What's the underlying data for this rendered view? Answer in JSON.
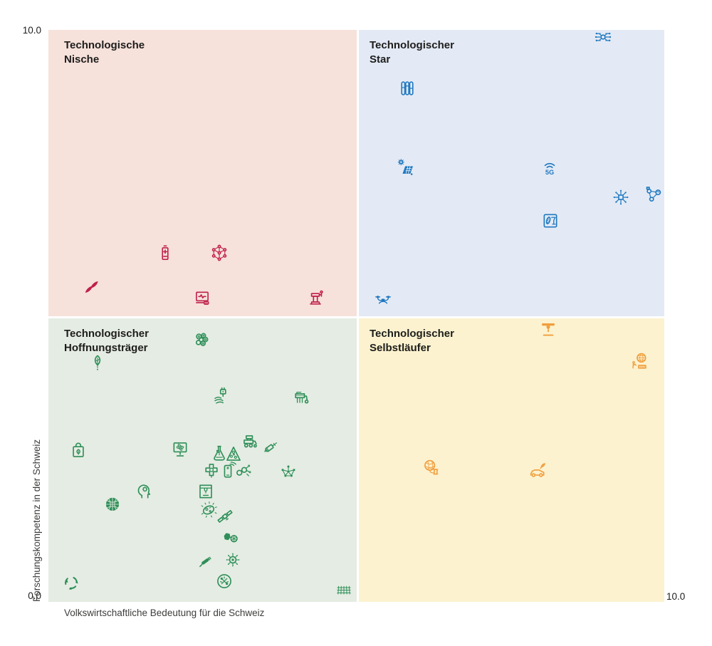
{
  "chart_data": {
    "type": "scatter",
    "title": "",
    "xlabel": "Volkswirtschaftliche Bedeutung für die Schweiz",
    "ylabel": "Forschungskompetenz in der Schweiz",
    "xlim": [
      0,
      10
    ],
    "ylim": [
      0,
      10
    ],
    "grid": false,
    "legend": "none",
    "x_tick_labels": {
      "min": "0.0",
      "max": "10.0"
    },
    "y_tick_labels": {
      "min": "0.0",
      "max": "10.0"
    },
    "quadrants": [
      {
        "id": "nische",
        "title_line1": "Technologische",
        "title_line2": "Nische",
        "bg": "#f6e1db",
        "icon_color": "#c0204a"
      },
      {
        "id": "star",
        "title_line1": "Technologischer",
        "title_line2": "Star",
        "bg": "#e3eaf5",
        "icon_color": "#2078c0"
      },
      {
        "id": "hoffnungstraeger",
        "title_line1": "Technologischer",
        "title_line2": "Hoffnungsträger",
        "bg": "#e5ece3",
        "icon_color": "#2e8f58"
      },
      {
        "id": "selbstlaeufer",
        "title_line1": "Technologischer",
        "title_line2": "Selbstläufer",
        "bg": "#fcf2cf",
        "icon_color": "#f09e3d"
      }
    ],
    "points": [
      {
        "name": "seed-pods",
        "glyph": "seeds",
        "quadrant": "nische",
        "x": 0.7,
        "y": 5.5
      },
      {
        "name": "battery",
        "glyph": "battery",
        "quadrant": "nische",
        "x": 1.9,
        "y": 6.1
      },
      {
        "name": "nano-structure",
        "glyph": "cube",
        "quadrant": "nische",
        "x": 2.78,
        "y": 6.1
      },
      {
        "name": "digital-health-monitor",
        "glyph": "healthmon",
        "quadrant": "nische",
        "x": 2.5,
        "y": 5.3
      },
      {
        "name": "industrial-robot",
        "glyph": "robotarm",
        "quadrant": "nische",
        "x": 4.34,
        "y": 5.33
      },
      {
        "name": "artificial-intelligence",
        "glyph": "neural",
        "quadrant": "star",
        "x": 9.0,
        "y": 9.87
      },
      {
        "name": "test-tubes",
        "glyph": "tubes",
        "quadrant": "star",
        "x": 5.83,
        "y": 8.98
      },
      {
        "name": "photovoltaics",
        "glyph": "solar",
        "quadrant": "star",
        "x": 5.8,
        "y": 7.6
      },
      {
        "name": "5g-communication",
        "glyph": "fiveg",
        "quadrant": "star",
        "x": 8.14,
        "y": 7.58
      },
      {
        "name": "microchip-network",
        "glyph": "chipburst",
        "quadrant": "star",
        "x": 9.29,
        "y": 7.07
      },
      {
        "name": "iot-network",
        "glyph": "iotnet",
        "quadrant": "star",
        "x": 9.83,
        "y": 7.11
      },
      {
        "name": "food-technology",
        "glyph": "foodsq",
        "quadrant": "star",
        "x": 8.15,
        "y": 6.66
      },
      {
        "name": "drone",
        "glyph": "drone",
        "quadrant": "star",
        "x": 5.43,
        "y": 5.28
      },
      {
        "name": "cell-cluster",
        "glyph": "cells",
        "quadrant": "hoffnungstraeger",
        "x": 2.49,
        "y": 4.58
      },
      {
        "name": "leaf",
        "glyph": "leaf",
        "quadrant": "hoffnungstraeger",
        "x": 0.8,
        "y": 4.18
      },
      {
        "name": "smart-charging",
        "glyph": "plughand",
        "quadrant": "hoffnungstraeger",
        "x": 2.81,
        "y": 3.6
      },
      {
        "name": "precision-farming",
        "glyph": "seeder",
        "quadrant": "hoffnungstraeger",
        "x": 4.1,
        "y": 3.56
      },
      {
        "name": "sustainable-shopping",
        "glyph": "bagleaf",
        "quadrant": "hoffnungstraeger",
        "x": 0.49,
        "y": 2.65
      },
      {
        "name": "quantum-computing",
        "glyph": "monatom",
        "quadrant": "hoffnungstraeger",
        "x": 2.14,
        "y": 2.66
      },
      {
        "name": "bio-flask",
        "glyph": "flask",
        "quadrant": "hoffnungstraeger",
        "x": 2.77,
        "y": 2.6
      },
      {
        "name": "nutrition-pyramid",
        "glyph": "pyramid",
        "quadrant": "hoffnungstraeger",
        "x": 3.01,
        "y": 2.59
      },
      {
        "name": "agri-machinery",
        "glyph": "harvester",
        "quadrant": "hoffnungstraeger",
        "x": 3.27,
        "y": 2.79
      },
      {
        "name": "syringe",
        "glyph": "syringe",
        "quadrant": "hoffnungstraeger",
        "x": 3.61,
        "y": 2.7
      },
      {
        "name": "personalized-medicine",
        "glyph": "puzzle",
        "quadrant": "hoffnungstraeger",
        "x": 2.65,
        "y": 2.29
      },
      {
        "name": "mobile-device",
        "glyph": "phonewifi",
        "quadrant": "hoffnungstraeger",
        "x": 2.91,
        "y": 2.3
      },
      {
        "name": "molecule-pair",
        "glyph": "molpair",
        "quadrant": "hoffnungstraeger",
        "x": 3.16,
        "y": 2.28
      },
      {
        "name": "network-nodes",
        "glyph": "nodeweb",
        "quadrant": "hoffnungstraeger",
        "x": 3.9,
        "y": 2.27
      },
      {
        "name": "cognitive-science",
        "glyph": "headgear",
        "quadrant": "hoffnungstraeger",
        "x": 1.57,
        "y": 1.94
      },
      {
        "name": "nano-sphere",
        "glyph": "sphere",
        "quadrant": "hoffnungstraeger",
        "x": 1.04,
        "y": 1.71
      },
      {
        "name": "3d-printer-frame",
        "glyph": "printer3d",
        "quadrant": "hoffnungstraeger",
        "x": 2.55,
        "y": 1.93
      },
      {
        "name": "microbe",
        "glyph": "microbe",
        "quadrant": "hoffnungstraeger",
        "x": 2.6,
        "y": 1.61
      },
      {
        "name": "satellite",
        "glyph": "satellite",
        "quadrant": "hoffnungstraeger",
        "x": 2.87,
        "y": 1.49
      },
      {
        "name": "advanced-materials",
        "glyph": "hexpair",
        "quadrant": "hoffnungstraeger",
        "x": 2.95,
        "y": 1.12
      },
      {
        "name": "biosensor-pen",
        "glyph": "pen",
        "quadrant": "hoffnungstraeger",
        "x": 2.57,
        "y": 0.73
      },
      {
        "name": "bio-chip",
        "glyph": "bugchip",
        "quadrant": "hoffnungstraeger",
        "x": 2.99,
        "y": 0.73
      },
      {
        "name": "engineering-tools",
        "glyph": "toolscircle",
        "quadrant": "hoffnungstraeger",
        "x": 2.86,
        "y": 0.36
      },
      {
        "name": "recycling",
        "glyph": "recycle",
        "quadrant": "hoffnungstraeger",
        "x": 0.37,
        "y": 0.34
      },
      {
        "name": "mesh-grid",
        "glyph": "mesh",
        "quadrant": "hoffnungstraeger",
        "x": 4.8,
        "y": 0.21
      },
      {
        "name": "3d-printing",
        "glyph": "printert",
        "quadrant": "selbstlaeufer",
        "x": 8.11,
        "y": 4.77
      },
      {
        "name": "industry-4-0",
        "glyph": "robotglobe",
        "quadrant": "selbstlaeufer",
        "x": 9.6,
        "y": 4.21
      },
      {
        "name": "textile-fibers",
        "glyph": "yarn",
        "quadrant": "selbstlaeufer",
        "x": 6.22,
        "y": 2.35
      },
      {
        "name": "eco-vehicle",
        "glyph": "ecocar",
        "quadrant": "selbstlaeufer",
        "x": 7.94,
        "y": 2.29
      }
    ]
  }
}
